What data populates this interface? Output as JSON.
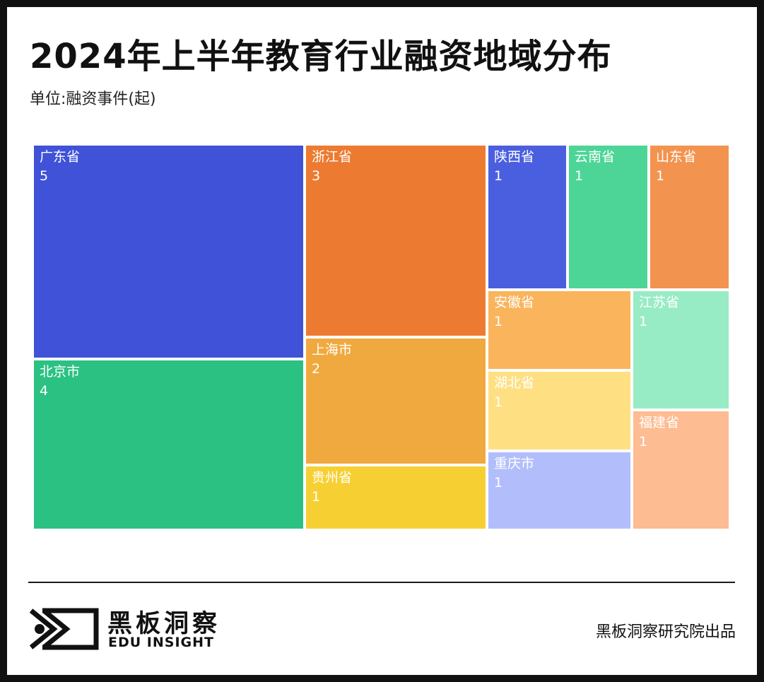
{
  "header": {
    "title": "2024年上半年教育行业融资地域分布",
    "subtitle": "单位:融资事件(起)"
  },
  "chart_data": {
    "type": "treemap",
    "unit": "起",
    "items": [
      {
        "name": "广东省",
        "value": 5,
        "color": "#3F52D8"
      },
      {
        "name": "北京市",
        "value": 4,
        "color": "#2BC183"
      },
      {
        "name": "浙江省",
        "value": 3,
        "color": "#EC7B31"
      },
      {
        "name": "上海市",
        "value": 2,
        "color": "#F0A93E"
      },
      {
        "name": "贵州省",
        "value": 1,
        "color": "#F6D033"
      },
      {
        "name": "陕西省",
        "value": 1,
        "color": "#4A5FE0"
      },
      {
        "name": "云南省",
        "value": 1,
        "color": "#4DD597"
      },
      {
        "name": "山东省",
        "value": 1,
        "color": "#F39350"
      },
      {
        "name": "安徽省",
        "value": 1,
        "color": "#FAB45C"
      },
      {
        "name": "湖北省",
        "value": 1,
        "color": "#FEE083"
      },
      {
        "name": "重庆市",
        "value": 1,
        "color": "#B2BEFB"
      },
      {
        "name": "江苏省",
        "value": 1,
        "color": "#98ECC5"
      },
      {
        "name": "福建省",
        "value": 1,
        "color": "#FDBC92"
      }
    ]
  },
  "footer": {
    "logo_cn": "黑板洞察",
    "logo_en": "EDU INSIGHT",
    "credit": "黑板洞察研究院出品"
  }
}
